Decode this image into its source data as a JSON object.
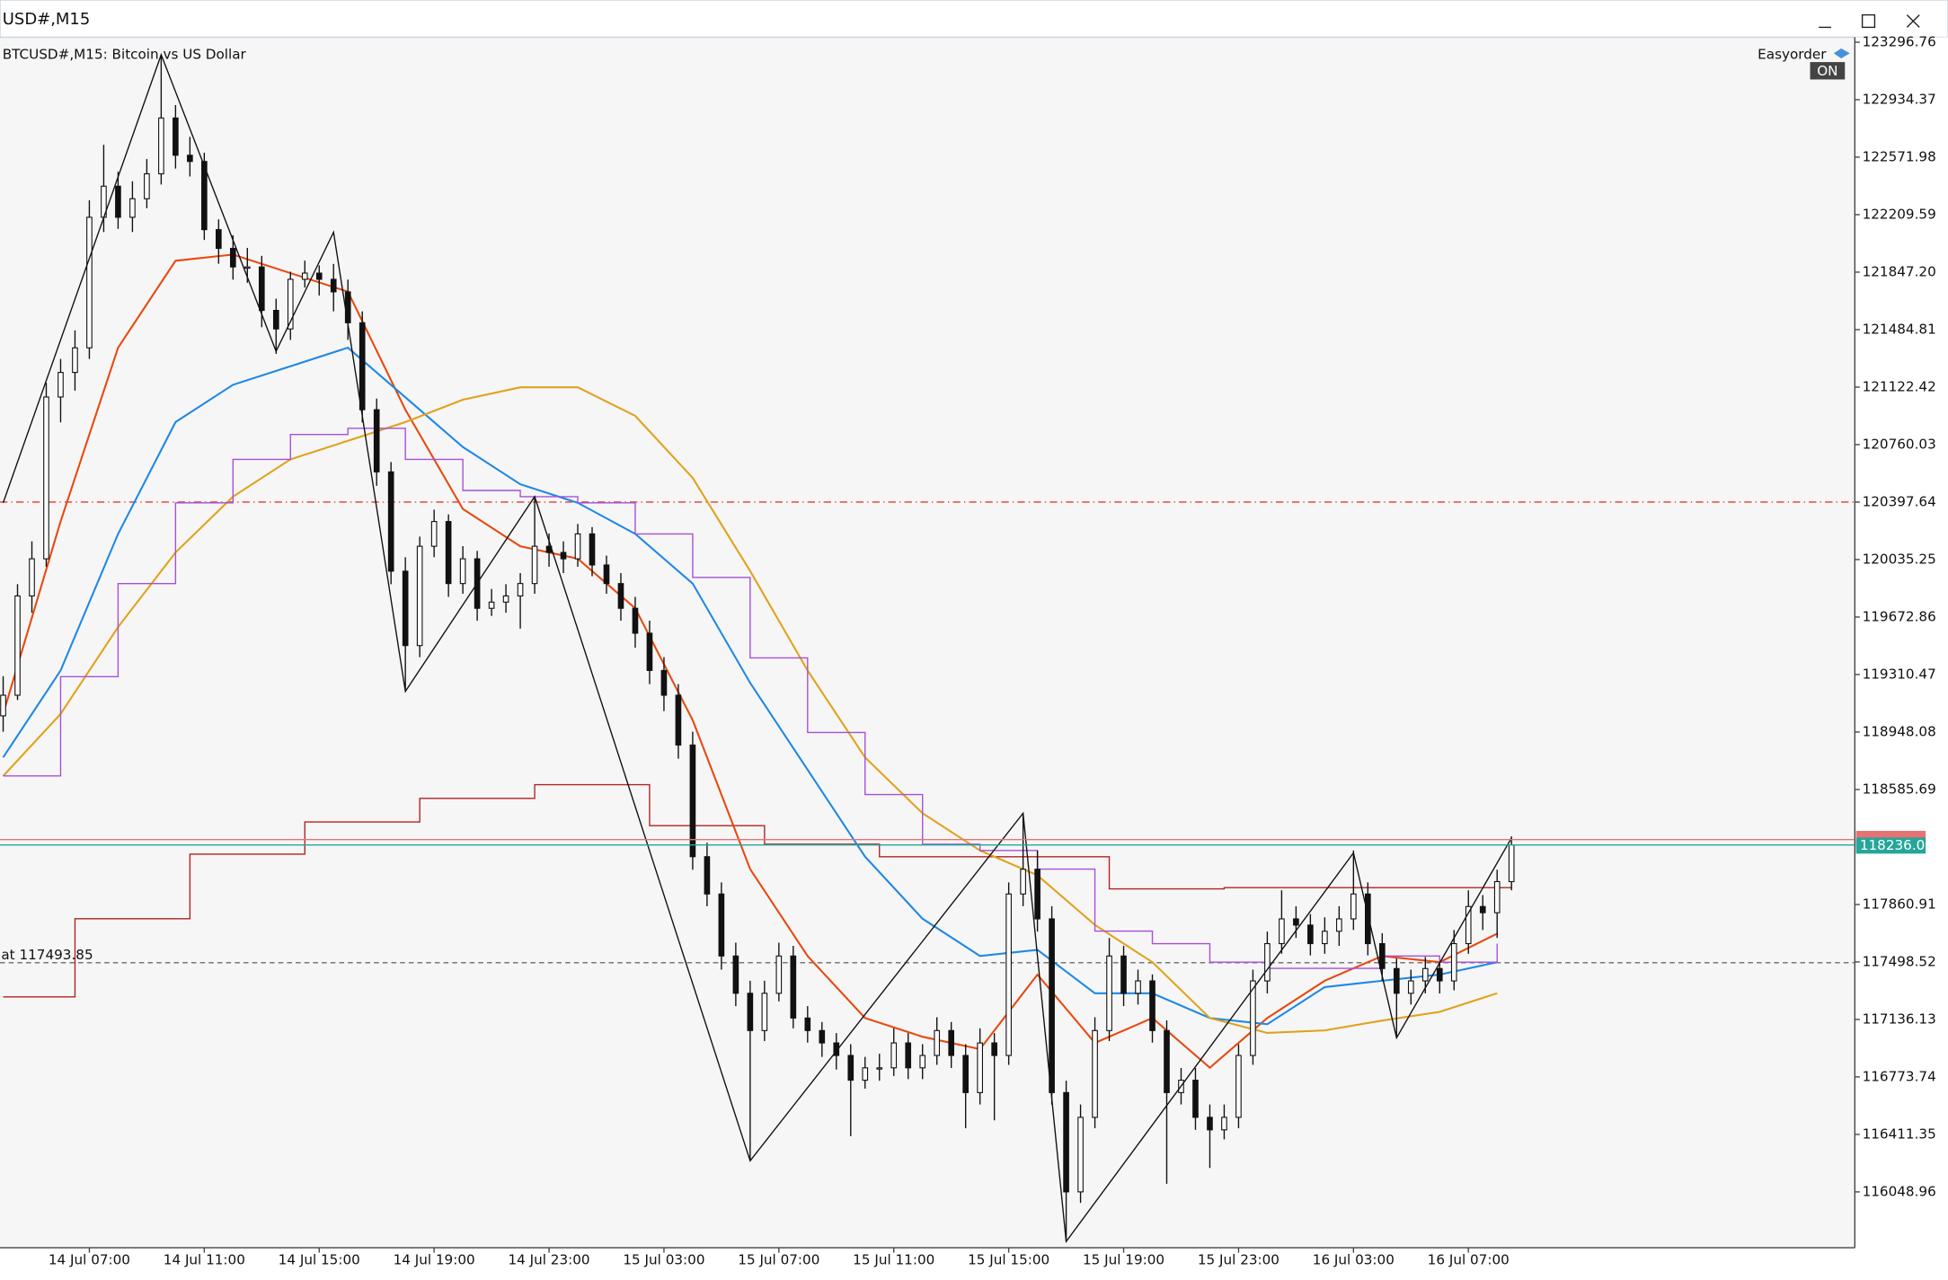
{
  "window_title": "USD#,M15",
  "chart_data": {
    "type": "candlestick",
    "title": "BTCUSD#,M15:  Bitcoin vs US Dollar",
    "easyorder": "Easyorder",
    "easyorder_state": "ON",
    "xlim": [
      -0.22,
      128.9
    ],
    "xticks": [
      {
        "value": 6,
        "label": "14 Jul 07:00"
      },
      {
        "value": 14,
        "label": "14 Jul 11:00"
      },
      {
        "value": 22,
        "label": "14 Jul 15:00"
      },
      {
        "value": 30,
        "label": "14 Jul 19:00"
      },
      {
        "value": 38,
        "label": "14 Jul 23:00"
      },
      {
        "value": 46,
        "label": "15 Jul 03:00"
      },
      {
        "value": 54,
        "label": "15 Jul 07:00"
      },
      {
        "value": 62,
        "label": "15 Jul 11:00"
      },
      {
        "value": 70,
        "label": "15 Jul 15:00"
      },
      {
        "value": 78,
        "label": "15 Jul 19:00"
      },
      {
        "value": 86,
        "label": "15 Jul 23:00"
      },
      {
        "value": 94,
        "label": "16 Jul 03:00"
      },
      {
        "value": 102,
        "label": "16 Jul 07:00"
      }
    ],
    "ylim": [
      115697,
      123328
    ],
    "yticks": [
      123296.76,
      122934.37,
      122571.98,
      122209.59,
      {
        "value": 121847.2,
        "label": "121847.20"
      },
      121484.81,
      121122.42,
      120760.03,
      120397.64,
      120035.25,
      119672.86,
      119310.47,
      118948.08,
      118585.69,
      117860.91,
      117498.52,
      117136.13,
      116773.74,
      116411.35,
      116048.96
    ],
    "candles": [
      [
        119050,
        119300,
        118950,
        119180
      ],
      [
        119180,
        119880,
        119150,
        119806
      ],
      [
        119806,
        120150,
        119700,
        120040
      ],
      [
        120040,
        121150,
        119990,
        121060
      ],
      [
        121060,
        121300,
        120900,
        121215
      ],
      [
        121215,
        121480,
        121100,
        121370
      ],
      [
        121370,
        122300,
        121300,
        122193
      ],
      [
        122193,
        122650,
        122100,
        122389
      ],
      [
        122389,
        122480,
        122120,
        122193
      ],
      [
        122193,
        122420,
        122100,
        122310
      ],
      [
        122310,
        122560,
        122250,
        122467
      ],
      [
        122467,
        123218,
        122400,
        122819
      ],
      [
        122819,
        122900,
        122500,
        122584
      ],
      [
        122584,
        122700,
        122450,
        122545
      ],
      [
        122545,
        122600,
        122050,
        122115
      ],
      [
        122115,
        122180,
        121900,
        121997
      ],
      [
        121997,
        122080,
        121800,
        121880
      ],
      [
        121880,
        122000,
        121780,
        121880
      ],
      [
        121880,
        121950,
        121500,
        121606
      ],
      [
        121606,
        121680,
        121332,
        121489
      ],
      [
        121489,
        121850,
        121420,
        121802
      ],
      [
        121802,
        121920,
        121750,
        121841
      ],
      [
        121841,
        121890,
        121700,
        121802
      ],
      [
        121802,
        121899,
        121600,
        121723
      ],
      [
        121723,
        121800,
        121420,
        121528
      ],
      [
        121528,
        121600,
        120900,
        120980
      ],
      [
        120980,
        121050,
        120500,
        120588
      ],
      [
        120588,
        120650,
        119880,
        119962
      ],
      [
        119962,
        120050,
        119219,
        119493
      ],
      [
        119493,
        120180,
        119420,
        120119
      ],
      [
        120119,
        120350,
        120050,
        120275
      ],
      [
        120275,
        120320,
        119800,
        119884
      ],
      [
        119884,
        120120,
        119820,
        120040
      ],
      [
        120040,
        120090,
        119650,
        119728
      ],
      [
        119728,
        119850,
        119680,
        119767
      ],
      [
        119767,
        119880,
        119700,
        119806
      ],
      [
        119806,
        119950,
        119600,
        119884
      ],
      [
        119884,
        120432,
        119820,
        120119
      ],
      [
        120119,
        120200,
        119990,
        120080
      ],
      [
        120080,
        120150,
        119950,
        120040
      ],
      [
        120040,
        120260,
        119990,
        120197
      ],
      [
        120197,
        120240,
        119930,
        120001
      ],
      [
        120001,
        120060,
        119820,
        119884
      ],
      [
        119884,
        119950,
        119650,
        119728
      ],
      [
        119728,
        119800,
        119480,
        119571
      ],
      [
        119571,
        119650,
        119250,
        119336
      ],
      [
        119336,
        119420,
        119080,
        119180
      ],
      [
        119180,
        119250,
        118780,
        118866
      ],
      [
        118866,
        118950,
        118080,
        118162
      ],
      [
        118162,
        118250,
        117850,
        117927
      ],
      [
        117927,
        118000,
        117450,
        117536
      ],
      [
        117536,
        117620,
        117220,
        117301
      ],
      [
        117301,
        117380,
        116245,
        117066
      ],
      [
        117066,
        117380,
        117000,
        117301
      ],
      [
        117301,
        117620,
        117250,
        117536
      ],
      [
        117536,
        117600,
        117080,
        117145
      ],
      [
        117145,
        117220,
        116990,
        117066
      ],
      [
        117066,
        117120,
        116900,
        116988
      ],
      [
        116988,
        117050,
        116820,
        116909
      ],
      [
        116909,
        116980,
        116400,
        116753
      ],
      [
        116753,
        116900,
        116700,
        116831
      ],
      [
        116831,
        116920,
        116750,
        116831
      ],
      [
        116831,
        117080,
        116780,
        116988
      ],
      [
        116988,
        117050,
        116760,
        116831
      ],
      [
        116831,
        116980,
        116760,
        116909
      ],
      [
        116909,
        117150,
        116850,
        117066
      ],
      [
        117066,
        117120,
        116830,
        116909
      ],
      [
        116909,
        116980,
        116450,
        116675
      ],
      [
        116675,
        117080,
        116600,
        116988
      ],
      [
        116988,
        117050,
        116500,
        116909
      ],
      [
        116909,
        118000,
        116850,
        117927
      ],
      [
        117927,
        118436,
        117850,
        118083
      ],
      [
        118083,
        118200,
        117690,
        117770
      ],
      [
        117770,
        117850,
        116600,
        116675
      ],
      [
        116675,
        116750,
        115736,
        116049
      ],
      [
        116049,
        116600,
        115980,
        116519
      ],
      [
        116519,
        117150,
        116450,
        117066
      ],
      [
        117066,
        117650,
        117000,
        117536
      ],
      [
        117536,
        117600,
        117220,
        117301
      ],
      [
        117301,
        117450,
        117230,
        117379
      ],
      [
        117379,
        117420,
        116990,
        117066
      ],
      [
        117066,
        117130,
        116100,
        116675
      ],
      [
        116675,
        116830,
        116600,
        116753
      ],
      [
        116753,
        116830,
        116440,
        116519
      ],
      [
        116519,
        116600,
        116200,
        116440
      ],
      [
        116440,
        116600,
        116380,
        116519
      ],
      [
        116519,
        116980,
        116450,
        116909
      ],
      [
        116909,
        117450,
        116850,
        117379
      ],
      [
        117379,
        117690,
        117300,
        117614
      ],
      [
        117614,
        117950,
        117550,
        117770
      ],
      [
        117770,
        117850,
        117650,
        117731
      ],
      [
        117731,
        117800,
        117540,
        117614
      ],
      [
        117614,
        117780,
        117550,
        117692
      ],
      [
        117692,
        117850,
        117600,
        117770
      ],
      [
        117770,
        118201,
        117700,
        117927
      ],
      [
        117927,
        118000,
        117540,
        117614
      ],
      [
        117614,
        117680,
        117380,
        117457
      ],
      [
        117457,
        117520,
        117027,
        117301
      ],
      [
        117301,
        117450,
        117230,
        117379
      ],
      [
        117379,
        117530,
        117300,
        117457
      ],
      [
        117457,
        117500,
        117300,
        117379
      ],
      [
        117379,
        117700,
        117320,
        117614
      ],
      [
        117614,
        117950,
        117550,
        117848
      ],
      [
        117848,
        117920,
        117700,
        117809
      ],
      [
        117809,
        118080,
        117650,
        118005
      ],
      [
        118005,
        118290,
        117950,
        118236.05
      ]
    ],
    "bull_color": "#ffffff",
    "bear_color": "#111111",
    "ma_x": [
      0,
      4,
      8,
      12,
      16,
      20,
      24,
      28,
      32,
      36,
      40,
      44,
      48,
      52,
      56,
      60,
      64,
      68,
      72,
      76,
      80,
      84,
      88,
      92,
      96,
      100,
      104
    ],
    "indicators": [
      {
        "color": "#e8490f",
        "step": false,
        "values": [
          119062,
          120276,
          121371,
          121919,
          121958,
          121841,
          121724,
          120980,
          120354,
          120119,
          120041,
          119728,
          119023,
          118084,
          117536,
          117145,
          117027,
          116949,
          117419,
          116988,
          117145,
          116832,
          117145,
          117380,
          117536,
          117497,
          117677
        ]
      },
      {
        "color": "#1e88e5",
        "step": false,
        "values": [
          118788,
          119336,
          120197,
          120902,
          121137,
          121254,
          121371,
          121058,
          120745,
          120510,
          120393,
          120197,
          119884,
          119258,
          118710,
          118162,
          117771,
          117536,
          117575,
          117301,
          117301,
          117145,
          117106,
          117340,
          117380,
          117419,
          117497
        ]
      },
      {
        "color": "#e0a21a",
        "step": false,
        "values": [
          118671,
          119062,
          119610,
          120080,
          120432,
          120667,
          120784,
          120902,
          121043,
          121121,
          121121,
          120941,
          120550,
          119963,
          119336,
          118788,
          118436,
          118201,
          118045,
          117732,
          117497,
          117145,
          117051,
          117067,
          117129,
          117184,
          117301
        ]
      },
      {
        "color": "#a64fd6",
        "step": true,
        "values": [
          118671,
          119297,
          119884,
          120393,
          120667,
          120824,
          120863,
          120667,
          120471,
          120432,
          120393,
          120197,
          119923,
          119415,
          118945,
          118554,
          118241,
          118201,
          118084,
          117693,
          117614,
          117497,
          117458,
          117458,
          117536,
          117497,
          117614
        ]
      }
    ],
    "range_steps": {
      "color": "#b22222",
      "x": [
        0,
        5,
        13,
        21,
        29,
        37,
        45,
        53,
        61,
        77,
        85
      ],
      "values": [
        117278,
        117771,
        118178,
        118381,
        118530,
        118616,
        118358,
        118241,
        118162,
        117959,
        117967
      ]
    },
    "zigzag": {
      "color": "#111111",
      "x": [
        0,
        11,
        19,
        23,
        28,
        37,
        52,
        71,
        74,
        94,
        97,
        105
      ],
      "values": [
        120393,
        123218,
        121348,
        122099,
        119204,
        120432,
        116245,
        118436,
        115736,
        118186,
        117020,
        118280
      ]
    },
    "alert_level": 120397.64,
    "alert_color": "#e53935",
    "order_level": {
      "value": 117493.85,
      "label": "at 117493.85"
    },
    "ask_price": 118270,
    "ask_color": "#e57373",
    "current_price": 118236.05,
    "current_color": "#26a69a"
  }
}
